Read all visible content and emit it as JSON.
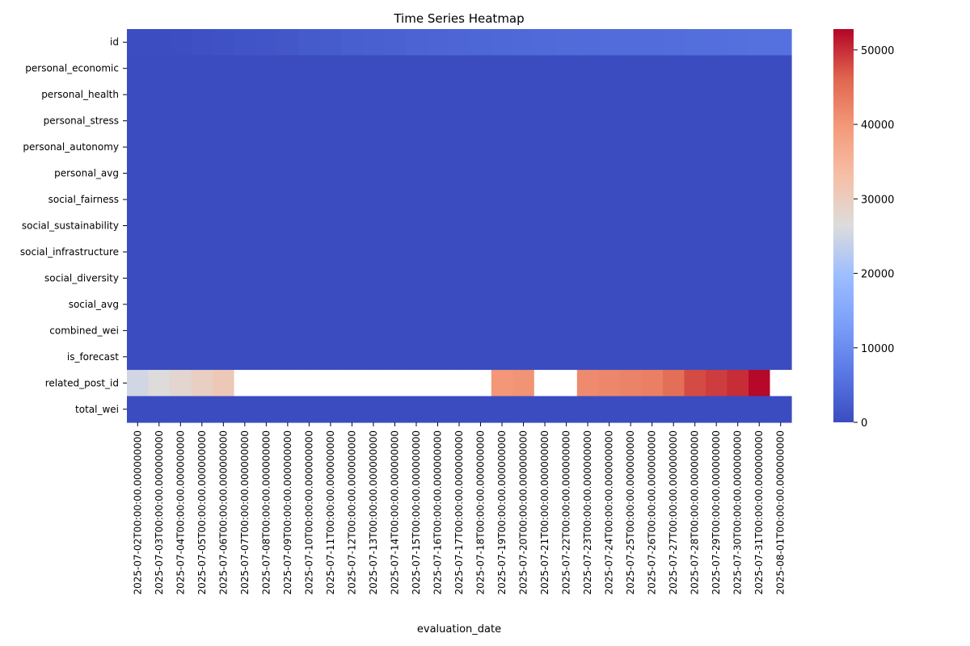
{
  "chart_data": {
    "type": "heatmap",
    "title": "Time Series Heatmap",
    "xlabel": "evaluation_date",
    "ylabel": "",
    "rows": [
      "id",
      "personal_economic",
      "personal_health",
      "personal_stress",
      "personal_autonomy",
      "personal_avg",
      "social_fairness",
      "social_sustainability",
      "social_infrastructure",
      "social_diversity",
      "social_avg",
      "combined_wei",
      "is_forecast",
      "related_post_id",
      "total_wei"
    ],
    "columns": [
      "2025-07-02T00:00:00.000000000",
      "2025-07-03T00:00:00.000000000",
      "2025-07-04T00:00:00.000000000",
      "2025-07-05T00:00:00.000000000",
      "2025-07-06T00:00:00.000000000",
      "2025-07-07T00:00:00.000000000",
      "2025-07-08T00:00:00.000000000",
      "2025-07-09T00:00:00.000000000",
      "2025-07-10T00:00:00.000000000",
      "2025-07-11T00:00:00.000000000",
      "2025-07-12T00:00:00.000000000",
      "2025-07-13T00:00:00.000000000",
      "2025-07-14T00:00:00.000000000",
      "2025-07-15T00:00:00.000000000",
      "2025-07-16T00:00:00.000000000",
      "2025-07-17T00:00:00.000000000",
      "2025-07-18T00:00:00.000000000",
      "2025-07-19T00:00:00.000000000",
      "2025-07-20T00:00:00.000000000",
      "2025-07-21T00:00:00.000000000",
      "2025-07-22T00:00:00.000000000",
      "2025-07-23T00:00:00.000000000",
      "2025-07-24T00:00:00.000000000",
      "2025-07-25T00:00:00.000000000",
      "2025-07-26T00:00:00.000000000",
      "2025-07-27T00:00:00.000000000",
      "2025-07-28T00:00:00.000000000",
      "2025-07-29T00:00:00.000000000",
      "2025-07-30T00:00:00.000000000",
      "2025-07-31T00:00:00.000000000",
      "2025-08-01T00:00:00.000000000"
    ],
    "values": [
      [
        100,
        200,
        300,
        600,
        900,
        1200,
        1400,
        1600,
        2200,
        2400,
        2800,
        3000,
        3200,
        3400,
        3600,
        3800,
        4000,
        4200,
        4400,
        4500,
        4600,
        4700,
        4800,
        4900,
        5000,
        5100,
        5200,
        5300,
        5400,
        5500,
        5600
      ],
      [
        0,
        0,
        0,
        0,
        0,
        0,
        0,
        0,
        0,
        0,
        0,
        0,
        0,
        0,
        0,
        0,
        0,
        0,
        0,
        0,
        0,
        0,
        0,
        0,
        0,
        0,
        0,
        0,
        0,
        0,
        0
      ],
      [
        0,
        0,
        0,
        0,
        0,
        0,
        0,
        0,
        0,
        0,
        0,
        0,
        0,
        0,
        0,
        0,
        0,
        0,
        0,
        0,
        0,
        0,
        0,
        0,
        0,
        0,
        0,
        0,
        0,
        0,
        0
      ],
      [
        0,
        0,
        0,
        0,
        0,
        0,
        0,
        0,
        0,
        0,
        0,
        0,
        0,
        0,
        0,
        0,
        0,
        0,
        0,
        0,
        0,
        0,
        0,
        0,
        0,
        0,
        0,
        0,
        0,
        0,
        0
      ],
      [
        0,
        0,
        0,
        0,
        0,
        0,
        0,
        0,
        0,
        0,
        0,
        0,
        0,
        0,
        0,
        0,
        0,
        0,
        0,
        0,
        0,
        0,
        0,
        0,
        0,
        0,
        0,
        0,
        0,
        0,
        0
      ],
      [
        0,
        0,
        0,
        0,
        0,
        0,
        0,
        0,
        0,
        0,
        0,
        0,
        0,
        0,
        0,
        0,
        0,
        0,
        0,
        0,
        0,
        0,
        0,
        0,
        0,
        0,
        0,
        0,
        0,
        0,
        0
      ],
      [
        0,
        0,
        0,
        0,
        0,
        0,
        0,
        0,
        0,
        0,
        0,
        0,
        0,
        0,
        0,
        0,
        0,
        0,
        0,
        0,
        0,
        0,
        0,
        0,
        0,
        0,
        0,
        0,
        0,
        0,
        0
      ],
      [
        0,
        0,
        0,
        0,
        0,
        0,
        0,
        0,
        0,
        0,
        0,
        0,
        0,
        0,
        0,
        0,
        0,
        0,
        0,
        0,
        0,
        0,
        0,
        0,
        0,
        0,
        0,
        0,
        0,
        0,
        0
      ],
      [
        0,
        0,
        0,
        0,
        0,
        0,
        0,
        0,
        0,
        0,
        0,
        0,
        0,
        0,
        0,
        0,
        0,
        0,
        0,
        0,
        0,
        0,
        0,
        0,
        0,
        0,
        0,
        0,
        0,
        0,
        0
      ],
      [
        0,
        0,
        0,
        0,
        0,
        0,
        0,
        0,
        0,
        0,
        0,
        0,
        0,
        0,
        0,
        0,
        0,
        0,
        0,
        0,
        0,
        0,
        0,
        0,
        0,
        0,
        0,
        0,
        0,
        0,
        0
      ],
      [
        0,
        0,
        0,
        0,
        0,
        0,
        0,
        0,
        0,
        0,
        0,
        0,
        0,
        0,
        0,
        0,
        0,
        0,
        0,
        0,
        0,
        0,
        0,
        0,
        0,
        0,
        0,
        0,
        0,
        0,
        0
      ],
      [
        0,
        0,
        0,
        0,
        0,
        0,
        0,
        0,
        0,
        0,
        0,
        0,
        0,
        0,
        0,
        0,
        0,
        0,
        0,
        0,
        0,
        0,
        0,
        0,
        0,
        0,
        0,
        0,
        0,
        0,
        0
      ],
      [
        0,
        0,
        0,
        0,
        0,
        0,
        0,
        0,
        0,
        0,
        0,
        0,
        0,
        0,
        0,
        0,
        0,
        0,
        0,
        0,
        0,
        0,
        0,
        0,
        0,
        0,
        0,
        0,
        0,
        0,
        0
      ],
      [
        25000,
        26500,
        28000,
        29500,
        31000,
        null,
        null,
        null,
        null,
        null,
        null,
        null,
        null,
        null,
        null,
        null,
        null,
        40000,
        40500,
        null,
        null,
        41500,
        42000,
        42500,
        43000,
        45000,
        48000,
        49000,
        50000,
        52500,
        null
      ],
      [
        0,
        0,
        0,
        0,
        0,
        0,
        0,
        0,
        0,
        0,
        0,
        0,
        0,
        0,
        0,
        0,
        0,
        0,
        0,
        0,
        0,
        0,
        0,
        0,
        0,
        0,
        0,
        0,
        0,
        0,
        0
      ]
    ],
    "colorbar": {
      "min": 0,
      "max": 52800,
      "ticks": [
        0,
        10000,
        20000,
        30000,
        40000,
        50000
      ],
      "colormap": "coolwarm"
    },
    "missing_color": "#ffffff"
  }
}
